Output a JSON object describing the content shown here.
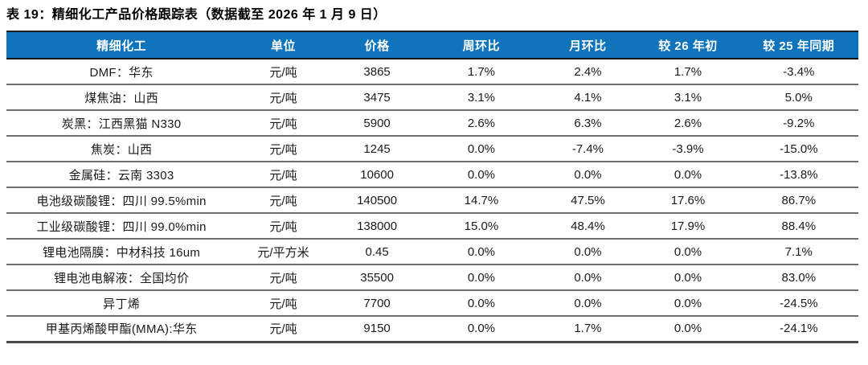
{
  "page_title": "表 19：精细化工产品价格跟踪表（数据截至 2026 年 1 月 9 日）",
  "colors": {
    "header_bg": "#0f74bc",
    "header_text": "#ffffff",
    "row_separator": "#6e6e6e",
    "header_border": "#141414"
  },
  "table": {
    "semantic_name": "fine-chemical-price-tracking-table",
    "columns": [
      {
        "key": "name",
        "label": "精细化工"
      },
      {
        "key": "unit",
        "label": "单位"
      },
      {
        "key": "price",
        "label": "价格"
      },
      {
        "key": "wow",
        "label": "周环比"
      },
      {
        "key": "mom",
        "label": "月环比"
      },
      {
        "key": "vs_26_start",
        "label": "较 26 年初"
      },
      {
        "key": "vs_25_yoy",
        "label": "较 25 年同期"
      }
    ],
    "rows": [
      {
        "name": "DMF：华东",
        "unit": "元/吨",
        "price": "3865",
        "wow": "1.7%",
        "mom": "2.4%",
        "vs_26_start": "1.7%",
        "vs_25_yoy": "-3.4%"
      },
      {
        "name": "煤焦油：山西",
        "unit": "元/吨",
        "price": "3475",
        "wow": "3.1%",
        "mom": "4.1%",
        "vs_26_start": "3.1%",
        "vs_25_yoy": "5.0%"
      },
      {
        "name": "炭黑：江西黑猫 N330",
        "unit": "元/吨",
        "price": "5900",
        "wow": "2.6%",
        "mom": "6.3%",
        "vs_26_start": "2.6%",
        "vs_25_yoy": "-9.2%"
      },
      {
        "name": "焦炭：山西",
        "unit": "元/吨",
        "price": "1245",
        "wow": "0.0%",
        "mom": "-7.4%",
        "vs_26_start": "-3.9%",
        "vs_25_yoy": "-15.0%"
      },
      {
        "name": "金属硅：云南 3303",
        "unit": "元/吨",
        "price": "10600",
        "wow": "0.0%",
        "mom": "0.0%",
        "vs_26_start": "0.0%",
        "vs_25_yoy": "-13.8%"
      },
      {
        "name": "电池级碳酸锂：四川 99.5%min",
        "unit": "元/吨",
        "price": "140500",
        "wow": "14.7%",
        "mom": "47.5%",
        "vs_26_start": "17.6%",
        "vs_25_yoy": "86.7%"
      },
      {
        "name": "工业级碳酸锂：四川 99.0%min",
        "unit": "元/吨",
        "price": "138000",
        "wow": "15.0%",
        "mom": "48.4%",
        "vs_26_start": "17.9%",
        "vs_25_yoy": "88.4%"
      },
      {
        "name": "锂电池隔膜：中材科技 16um",
        "unit": "元/平方米",
        "price": "0.45",
        "wow": "0.0%",
        "mom": "0.0%",
        "vs_26_start": "0.0%",
        "vs_25_yoy": "7.1%"
      },
      {
        "name": "锂电池电解液：全国均价",
        "unit": "元/吨",
        "price": "35500",
        "wow": "0.0%",
        "mom": "0.0%",
        "vs_26_start": "0.0%",
        "vs_25_yoy": "83.0%"
      },
      {
        "name": "异丁烯",
        "unit": "元/吨",
        "price": "7700",
        "wow": "0.0%",
        "mom": "0.0%",
        "vs_26_start": "0.0%",
        "vs_25_yoy": "-24.5%"
      },
      {
        "name": "甲基丙烯酸甲酯(MMA):华东",
        "unit": "元/吨",
        "price": "9150",
        "wow": "0.0%",
        "mom": "1.7%",
        "vs_26_start": "0.0%",
        "vs_25_yoy": "-24.1%"
      }
    ]
  }
}
